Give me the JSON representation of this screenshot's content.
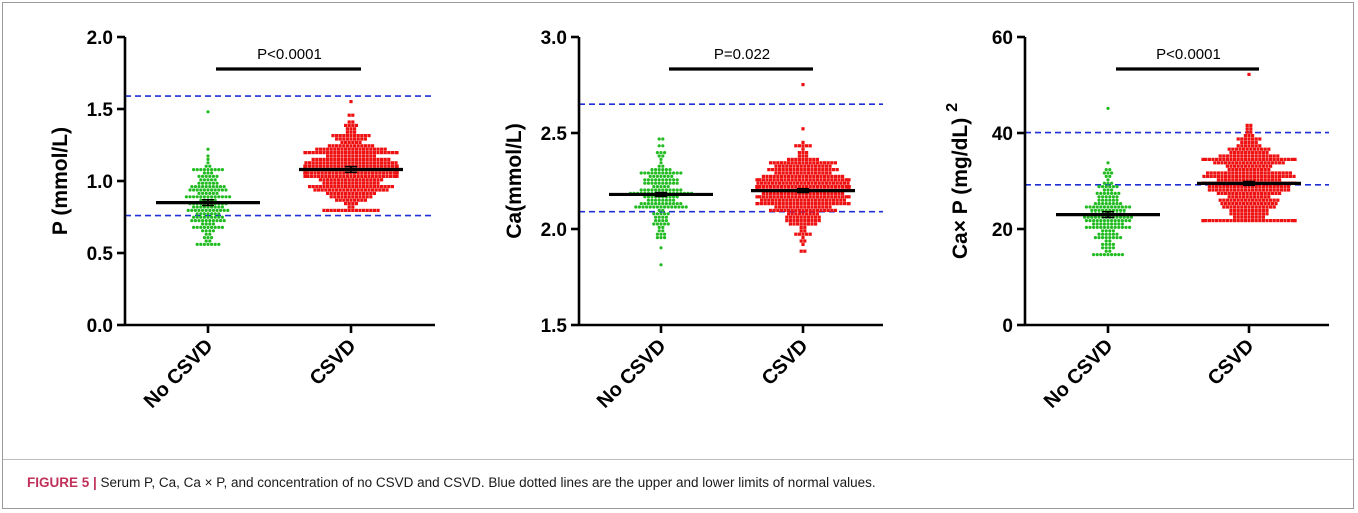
{
  "caption": {
    "label": "FIGURE 5 |",
    "text": " Serum P, Ca, Ca × P, and concentration of no CSVD and CSVD. Blue dotted lines are the upper and lower limits of normal values."
  },
  "colors": {
    "no_csvd": "#22bb22",
    "csvd": "#ee1111",
    "reference_line": "#1f2fd6",
    "axis": "#000000"
  },
  "chart_data": [
    {
      "type": "scatter",
      "subtype": "dot-plot",
      "ylabel": "P (mmol/L)",
      "ylabel_superscript": "",
      "categories": [
        "No CSVD",
        "CSVD"
      ],
      "ylim": [
        0.0,
        2.0
      ],
      "yticks": [
        "0.0",
        "0.5",
        "1.0",
        "1.5",
        "2.0"
      ],
      "reference_lines": [
        0.76,
        1.59
      ],
      "series": [
        {
          "category": "No CSVD",
          "mean": 0.85,
          "sem": 0.02,
          "n": 170,
          "min": 0.57,
          "max": 1.47,
          "spread": 0.15
        },
        {
          "category": "CSVD",
          "mean": 1.08,
          "sem": 0.02,
          "n": 420,
          "min": 0.8,
          "max": 1.55,
          "spread": 0.14
        }
      ],
      "significance": "P<0.0001"
    },
    {
      "type": "scatter",
      "subtype": "dot-plot",
      "ylabel": "Ca(mmol/L)",
      "ylabel_superscript": "",
      "categories": [
        "No CSVD",
        "CSVD"
      ],
      "ylim": [
        1.5,
        3.0
      ],
      "yticks": [
        "1.5",
        "2.0",
        "2.5",
        "3.0"
      ],
      "reference_lines": [
        2.09,
        2.65
      ],
      "series": [
        {
          "category": "No CSVD",
          "mean": 2.18,
          "sem": 0.01,
          "n": 170,
          "min": 1.82,
          "max": 2.47,
          "spread": 0.11
        },
        {
          "category": "CSVD",
          "mean": 2.2,
          "sem": 0.01,
          "n": 420,
          "min": 1.88,
          "max": 2.76,
          "spread": 0.1
        }
      ],
      "significance": "P=0.022"
    },
    {
      "type": "scatter",
      "subtype": "dot-plot",
      "ylabel": "Ca× P (mg/dL)",
      "ylabel_superscript": "2",
      "categories": [
        "No CSVD",
        "CSVD"
      ],
      "ylim": [
        0,
        60
      ],
      "yticks": [
        "0",
        "20",
        "40",
        "60"
      ],
      "reference_lines": [
        29.2,
        40.1
      ],
      "series": [
        {
          "category": "No CSVD",
          "mean": 23.0,
          "sem": 0.6,
          "n": 170,
          "min": 14.5,
          "max": 45,
          "spread": 5.0
        },
        {
          "category": "CSVD",
          "mean": 29.5,
          "sem": 0.4,
          "n": 420,
          "min": 21.5,
          "max": 52,
          "spread": 5.0
        }
      ],
      "significance": "P<0.0001"
    }
  ]
}
